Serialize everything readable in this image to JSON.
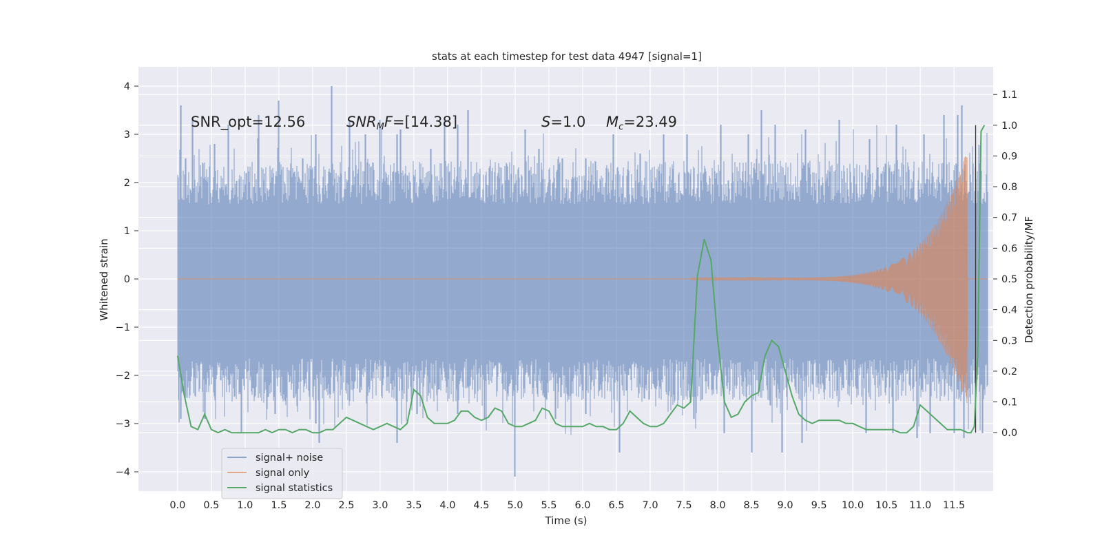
{
  "chart_data": {
    "type": "line",
    "title": "stats at each timestep for test data 4947 [signal=1]",
    "xlabel": "Time (s)",
    "ylabel": "Whitened strain",
    "ylabel_right": "Detection probability/MF",
    "xlim": [
      -0.58,
      12.08
    ],
    "ylim": [
      -4.4,
      4.4
    ],
    "ylim_right": [
      -0.19,
      1.19
    ],
    "x_ticks": [
      "0.0",
      "0.5",
      "1.0",
      "1.5",
      "2.0",
      "2.5",
      "3.0",
      "3.5",
      "4.0",
      "4.5",
      "5.0",
      "5.5",
      "6.0",
      "6.5",
      "7.0",
      "7.5",
      "8.0",
      "8.5",
      "9.0",
      "9.5",
      "10.0",
      "10.5",
      "11.0",
      "11.5"
    ],
    "y_ticks": [
      "4",
      "3",
      "2",
      "1",
      "0",
      "−1",
      "−2",
      "−3",
      "−4"
    ],
    "y_right_ticks": [
      "1.1",
      "1.0",
      "0.9",
      "0.8",
      "0.7",
      "0.6",
      "0.5",
      "0.4",
      "0.3",
      "0.2",
      "0.1",
      "0.0"
    ],
    "grid": true,
    "background": "#eaeaf2",
    "legend_position": "lower-left",
    "annotations": {
      "snr_opt": "SNR_opt=12.56",
      "snr_mf_name": "SNR",
      "snr_mf_sub": "M",
      "snr_mf_rest": "F",
      "snr_mf_value": "=[14.38]",
      "s_name": "S",
      "s_value": "=1.0",
      "mc_name": "M",
      "mc_sub": "c",
      "mc_value": "=23.49"
    },
    "marker_line_x": 11.82,
    "series": [
      {
        "name": "signal+ noise",
        "color": "#4c72b0",
        "opacity": 0.55,
        "x_range": [
          0.0,
          12.0
        ],
        "typical_upper": 2.0,
        "typical_lower": -2.1,
        "spikes": [
          [
            0.05,
            3.6
          ],
          [
            0.12,
            2.5
          ],
          [
            0.22,
            3.3
          ],
          [
            0.55,
            2.8
          ],
          [
            0.75,
            3.2
          ],
          [
            1.2,
            3.4
          ],
          [
            1.5,
            3.7
          ],
          [
            1.85,
            2.5
          ],
          [
            2.05,
            3.0
          ],
          [
            2.28,
            4.0
          ],
          [
            2.55,
            3.3
          ],
          [
            2.78,
            3.0
          ],
          [
            3.0,
            3.3
          ],
          [
            3.25,
            3.0
          ],
          [
            3.3,
            3.1
          ],
          [
            3.75,
            2.7
          ],
          [
            3.95,
            3.3
          ],
          [
            4.15,
            3.2
          ],
          [
            4.3,
            3.5
          ],
          [
            4.75,
            2.2
          ],
          [
            5.15,
            3.1
          ],
          [
            5.35,
            2.7
          ],
          [
            5.7,
            2.5
          ],
          [
            6.05,
            2.5
          ],
          [
            6.45,
            3.0
          ],
          [
            6.85,
            2.6
          ],
          [
            7.2,
            3.0
          ],
          [
            7.55,
            3.0
          ],
          [
            8.05,
            3.2
          ],
          [
            8.45,
            3.0
          ],
          [
            8.65,
            3.5
          ],
          [
            8.85,
            3.2
          ],
          [
            9.3,
            3.1
          ],
          [
            9.8,
            3.3
          ],
          [
            10.25,
            2.9
          ],
          [
            10.65,
            3.2
          ],
          [
            11.05,
            3.0
          ],
          [
            11.35,
            3.4
          ],
          [
            11.55,
            3.4
          ],
          [
            11.62,
            3.6
          ]
        ],
        "dips": [
          [
            0.05,
            -2.9
          ],
          [
            0.4,
            -2.9
          ],
          [
            0.95,
            -3.2
          ],
          [
            1.45,
            -2.8
          ],
          [
            2.05,
            -3.0
          ],
          [
            2.1,
            -3.4
          ],
          [
            3.25,
            -3.4
          ],
          [
            3.55,
            -2.8
          ],
          [
            4.15,
            -2.8
          ],
          [
            4.55,
            -2.9
          ],
          [
            5.0,
            -4.1
          ],
          [
            5.6,
            -2.9
          ],
          [
            6.05,
            -2.8
          ],
          [
            6.55,
            -3.6
          ],
          [
            7.65,
            -2.9
          ],
          [
            8.1,
            -3.2
          ],
          [
            8.5,
            -3.6
          ],
          [
            8.95,
            -3.6
          ],
          [
            9.25,
            -3.4
          ],
          [
            10.2,
            -3.2
          ],
          [
            10.6,
            -3.2
          ],
          [
            10.95,
            -3.3
          ],
          [
            11.15,
            -3.2
          ],
          [
            11.5,
            -3.2
          ],
          [
            11.65,
            -3.3
          ],
          [
            11.92,
            -3.2
          ]
        ]
      },
      {
        "name": "signal only",
        "color": "#dd8452",
        "opacity": 0.6,
        "chirp_start": 7.6,
        "chirp_end": 11.7,
        "peak_amplitude": 2.7
      },
      {
        "name": "signal statistics",
        "color": "#55a868",
        "axis": "right",
        "x": [
          0.0,
          0.1,
          0.2,
          0.3,
          0.4,
          0.5,
          0.6,
          0.7,
          0.8,
          0.9,
          1.0,
          1.1,
          1.2,
          1.3,
          1.4,
          1.5,
          1.6,
          1.7,
          1.8,
          1.9,
          2.0,
          2.1,
          2.2,
          2.3,
          2.4,
          2.5,
          2.6,
          2.7,
          2.8,
          2.9,
          3.0,
          3.1,
          3.2,
          3.3,
          3.4,
          3.5,
          3.6,
          3.7,
          3.8,
          3.9,
          4.0,
          4.1,
          4.2,
          4.3,
          4.4,
          4.5,
          4.6,
          4.7,
          4.8,
          4.9,
          5.0,
          5.1,
          5.2,
          5.3,
          5.4,
          5.5,
          5.6,
          5.7,
          5.8,
          5.9,
          6.0,
          6.1,
          6.2,
          6.3,
          6.4,
          6.5,
          6.6,
          6.7,
          6.8,
          6.9,
          7.0,
          7.1,
          7.2,
          7.3,
          7.4,
          7.5,
          7.6,
          7.7,
          7.8,
          7.9,
          8.0,
          8.1,
          8.2,
          8.3,
          8.4,
          8.5,
          8.6,
          8.7,
          8.8,
          8.9,
          9.0,
          9.1,
          9.2,
          9.3,
          9.4,
          9.5,
          9.6,
          9.7,
          9.8,
          9.9,
          10.0,
          10.1,
          10.2,
          10.3,
          10.4,
          10.5,
          10.6,
          10.7,
          10.8,
          10.9,
          11.0,
          11.1,
          11.2,
          11.3,
          11.4,
          11.5,
          11.6,
          11.7,
          11.75,
          11.8,
          11.85,
          11.9,
          11.95
        ],
        "values": [
          0.25,
          0.12,
          0.02,
          0.01,
          0.06,
          0.01,
          0.0,
          0.01,
          0.0,
          0.0,
          0.0,
          0.0,
          0.0,
          0.01,
          0.0,
          0.01,
          0.01,
          0.0,
          0.01,
          0.01,
          0.0,
          0.0,
          0.01,
          0.01,
          0.03,
          0.05,
          0.04,
          0.03,
          0.02,
          0.01,
          0.02,
          0.03,
          0.02,
          0.01,
          0.03,
          0.14,
          0.12,
          0.05,
          0.03,
          0.03,
          0.03,
          0.04,
          0.07,
          0.07,
          0.05,
          0.04,
          0.05,
          0.08,
          0.07,
          0.03,
          0.02,
          0.02,
          0.03,
          0.04,
          0.08,
          0.07,
          0.03,
          0.02,
          0.02,
          0.02,
          0.02,
          0.03,
          0.02,
          0.02,
          0.01,
          0.01,
          0.03,
          0.07,
          0.05,
          0.03,
          0.02,
          0.02,
          0.03,
          0.06,
          0.09,
          0.08,
          0.1,
          0.51,
          0.63,
          0.56,
          0.3,
          0.1,
          0.05,
          0.06,
          0.1,
          0.12,
          0.13,
          0.25,
          0.3,
          0.28,
          0.2,
          0.12,
          0.06,
          0.04,
          0.03,
          0.04,
          0.04,
          0.04,
          0.04,
          0.03,
          0.03,
          0.02,
          0.01,
          0.01,
          0.01,
          0.01,
          0.01,
          0.0,
          0.0,
          0.02,
          0.09,
          0.07,
          0.05,
          0.03,
          0.01,
          0.01,
          0.01,
          0.0,
          0.0,
          0.02,
          0.25,
          0.98,
          1.0
        ]
      }
    ]
  }
}
